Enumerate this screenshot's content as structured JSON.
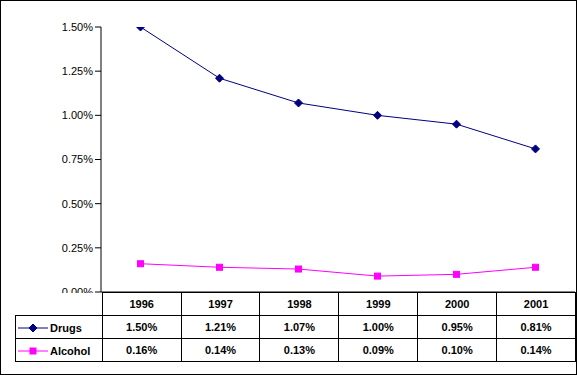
{
  "chart_data": {
    "type": "line",
    "categories": [
      "1996",
      "1997",
      "1998",
      "1999",
      "2000",
      "2001"
    ],
    "series": [
      {
        "name": "Drugs",
        "color": "#000080",
        "marker": "diamond",
        "values": [
          1.5,
          1.21,
          1.07,
          1.0,
          0.95,
          0.81
        ],
        "value_labels": [
          "1.50%",
          "1.21%",
          "1.07%",
          "1.00%",
          "0.95%",
          "0.81%"
        ]
      },
      {
        "name": "Alcohol",
        "color": "#ff00ff",
        "marker": "square",
        "values": [
          0.16,
          0.14,
          0.13,
          0.09,
          0.1,
          0.14
        ],
        "value_labels": [
          "0.16%",
          "0.14%",
          "0.13%",
          "0.09%",
          "0.10%",
          "0.14%"
        ]
      }
    ],
    "ylim": [
      0,
      1.5
    ],
    "yticks": [
      {
        "value": 0,
        "label": "0.00%"
      },
      {
        "value": 0.25,
        "label": "0.25%"
      },
      {
        "value": 0.5,
        "label": "0.50%"
      },
      {
        "value": 0.75,
        "label": "0.75%"
      },
      {
        "value": 1.0,
        "label": "1.00%"
      },
      {
        "value": 1.25,
        "label": "1.25%"
      },
      {
        "value": 1.5,
        "label": "1.50%"
      }
    ],
    "grid": false
  }
}
